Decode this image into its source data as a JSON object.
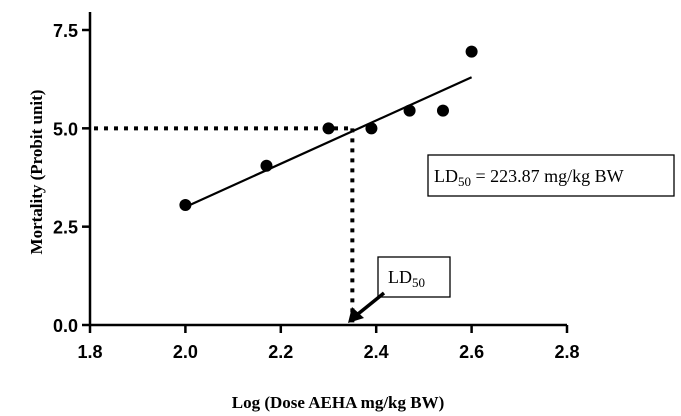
{
  "chart_data": {
    "type": "scatter",
    "xlabel": "Log (Dose AEHA mg/kg BW)",
    "ylabel": "Mortality (Probit unit)",
    "xlim": [
      1.8,
      2.8
    ],
    "ylim": [
      0,
      7.5
    ],
    "x_ticks": [
      "1.8",
      "2.0",
      "2.2",
      "2.4",
      "2.6",
      "2.8"
    ],
    "y_ticks": [
      "0.0",
      "2.5",
      "5.0",
      "7.5"
    ],
    "points": [
      {
        "x": 2.0,
        "y": 3.05
      },
      {
        "x": 2.17,
        "y": 4.05
      },
      {
        "x": 2.3,
        "y": 5.0
      },
      {
        "x": 2.39,
        "y": 5.0
      },
      {
        "x": 2.47,
        "y": 5.45
      },
      {
        "x": 2.54,
        "y": 5.45
      },
      {
        "x": 2.6,
        "y": 6.95
      }
    ],
    "fit_line": {
      "x1": 2.0,
      "y1": 3.0,
      "x2": 2.6,
      "y2": 6.3
    },
    "ld50": {
      "x": 2.35,
      "y": 5.0
    },
    "annotations": {
      "ld50_box": {
        "main": "LD",
        "sub": "50",
        "rest": " = 223.87 mg/kg BW"
      },
      "ld50_callout": {
        "main": "LD",
        "sub": "50"
      }
    }
  }
}
